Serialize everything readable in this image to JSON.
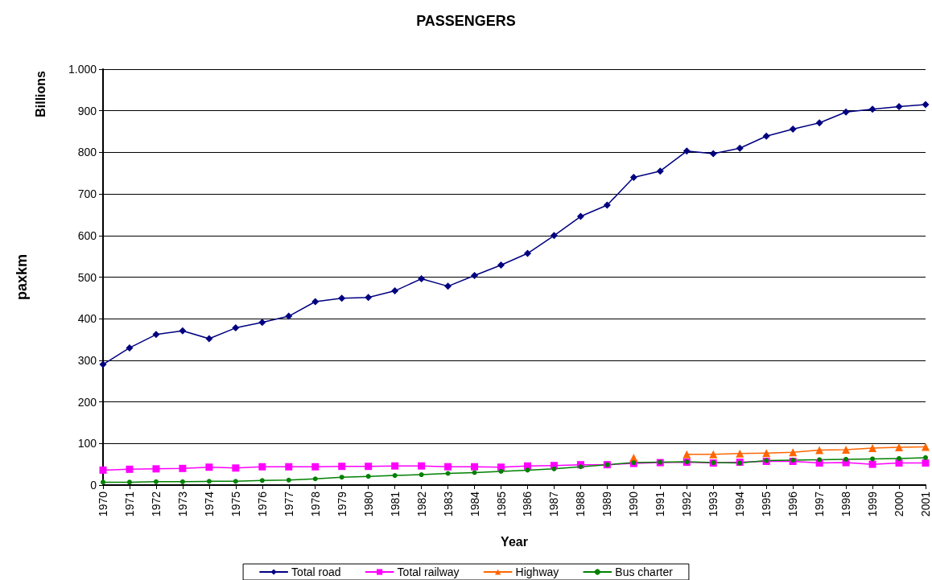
{
  "chart_data": {
    "type": "line",
    "title": "PASSENGERS",
    "xlabel": "Year",
    "ylabel": "paxkm",
    "annotations": [
      "Billions"
    ],
    "categories": [
      "1970",
      "1971",
      "1972",
      "1973",
      "1974",
      "1975",
      "1976",
      "1977",
      "1978",
      "1979",
      "1980",
      "1981",
      "1982",
      "1983",
      "1984",
      "1985",
      "1986",
      "1987",
      "1988",
      "1989",
      "1990",
      "1991",
      "1992",
      "1993",
      "1994",
      "1995",
      "1996",
      "1997",
      "1998",
      "1999",
      "2000",
      "2001"
    ],
    "series": [
      {
        "name": "Total road",
        "color": "#000080",
        "marker": "diamond",
        "values": [
          290,
          330,
          362,
          371,
          352,
          378,
          391,
          406,
          441,
          449,
          451,
          467,
          496,
          478,
          504,
          529,
          557,
          600,
          646,
          673,
          740,
          755,
          803,
          797,
          810,
          839,
          856,
          871,
          897,
          904,
          910,
          915
        ]
      },
      {
        "name": "Total railway",
        "color": "#ff00ff",
        "marker": "square",
        "values": [
          36,
          38,
          39,
          40,
          43,
          41,
          44,
          44,
          44,
          45,
          45,
          46,
          46,
          44,
          44,
          43,
          46,
          47,
          49,
          49,
          52,
          54,
          55,
          53,
          55,
          57,
          57,
          53,
          54,
          50,
          53,
          53
        ]
      },
      {
        "name": "Highway",
        "color": "#ff6600",
        "marker": "triangle",
        "values": [
          null,
          null,
          null,
          null,
          null,
          null,
          null,
          null,
          null,
          null,
          null,
          null,
          null,
          null,
          null,
          null,
          null,
          null,
          null,
          null,
          66,
          null,
          74,
          74,
          76,
          77,
          79,
          84,
          85,
          89,
          91,
          92
        ]
      },
      {
        "name": "Bus charter",
        "color": "#008000",
        "marker": "circle",
        "values": [
          7,
          7,
          8,
          8,
          9,
          9,
          11,
          12,
          15,
          19,
          21,
          23,
          25,
          28,
          30,
          33,
          36,
          39,
          44,
          49,
          54,
          55,
          56,
          54,
          53,
          59,
          60,
          61,
          62,
          63,
          64,
          66
        ]
      }
    ],
    "ylim": [
      0,
      1000
    ],
    "yticks": [
      0,
      100,
      200,
      300,
      400,
      500,
      600,
      700,
      800,
      900,
      {
        "value": 1000,
        "label": "1.000"
      }
    ],
    "grid": "y",
    "legend": "bottom",
    "line_style": "solid"
  }
}
